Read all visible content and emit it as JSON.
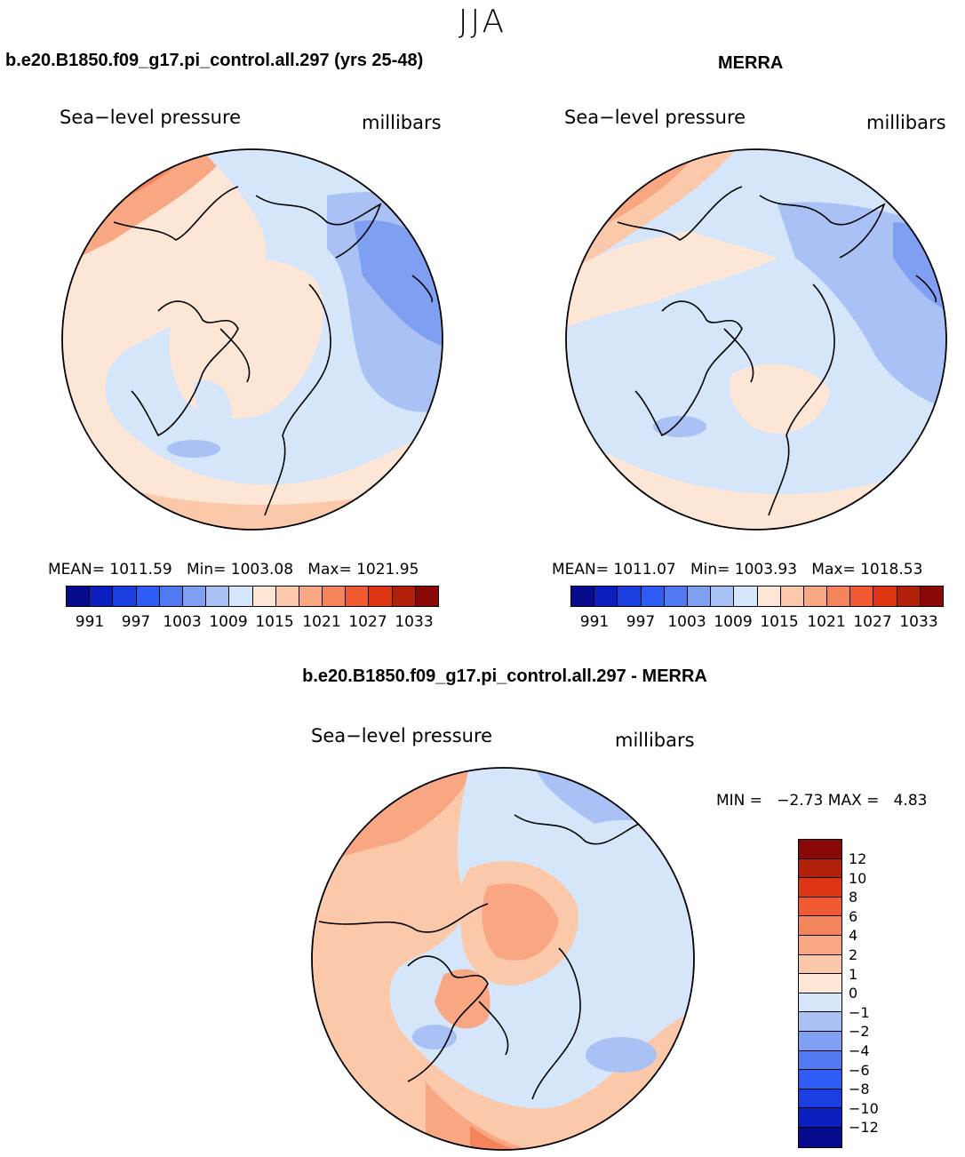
{
  "figure": {
    "season": "JJA",
    "colors": {
      "land_line": "#000000",
      "blues": [
        "#050b8c",
        "#0b1fbf",
        "#1a3ee0",
        "#2e5cf5",
        "#5079f2",
        "#7f9ff2",
        "#a9c1f5",
        "#d5e6fb"
      ],
      "reds": [
        "#fde6d6",
        "#fbc9aa",
        "#f9a683",
        "#f4845c",
        "#f05a33",
        "#de3512",
        "#b3200a",
        "#8a0906"
      ]
    }
  },
  "panels": {
    "model": {
      "title": "b.e20.B1850.f09_g17.pi_control.all.297 (yrs 25-48)",
      "variable": "Sea−level pressure",
      "units": "millibars",
      "mean_label": "MEAN=",
      "mean": "1011.59",
      "min_label": "Min=",
      "min": "1003.08",
      "max_label": "Max=",
      "max": "1021.95"
    },
    "obs": {
      "title": "MERRA",
      "variable": "Sea−level pressure",
      "units": "millibars",
      "mean_label": "MEAN=",
      "mean": "1011.07",
      "min_label": "Min=",
      "min": "1003.93",
      "max_label": "Max=",
      "max": "1018.53"
    },
    "diff": {
      "title": "b.e20.B1850.f09_g17.pi_control.all.297 - MERRA",
      "variable": "Sea−level pressure",
      "units": "millibars",
      "min_label": "MIN =",
      "min": "−2.73",
      "max_label": "MAX =",
      "max": "4.83"
    }
  },
  "legends": {
    "field_ticks": [
      "991",
      "997",
      "1003",
      "1009",
      "1015",
      "1021",
      "1027",
      "1033"
    ],
    "diff_ticks": [
      "12",
      "10",
      "8",
      "6",
      "4",
      "2",
      "1",
      "0",
      "−1",
      "−2",
      "−4",
      "−6",
      "−8",
      "−10",
      "−12"
    ]
  }
}
